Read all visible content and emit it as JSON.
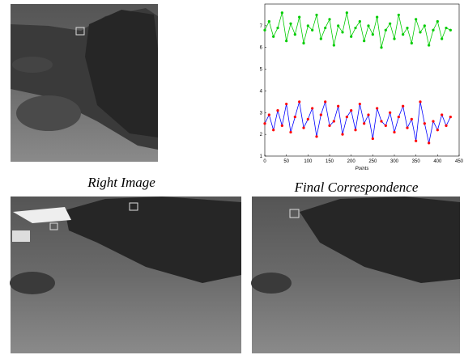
{
  "figure": {
    "caption_top_left": "Right Image",
    "caption_top_right": "Final Correspondence"
  },
  "chart_data": {
    "type": "line",
    "xlabel": "Points",
    "x": [
      0,
      10,
      20,
      30,
      40,
      50,
      60,
      70,
      80,
      90,
      100,
      110,
      120,
      130,
      140,
      150,
      160,
      170,
      180,
      190,
      200,
      210,
      220,
      230,
      240,
      250,
      260,
      270,
      280,
      290,
      300,
      310,
      320,
      330,
      340,
      350,
      360,
      370,
      380,
      390,
      400,
      410,
      420,
      430
    ],
    "series": [
      {
        "color": "#00cc00",
        "marker_color": "#00cc00",
        "values": [
          6.8,
          7.2,
          6.5,
          6.9,
          7.6,
          6.3,
          7.1,
          6.6,
          7.4,
          6.2,
          7.0,
          6.8,
          7.5,
          6.4,
          6.9,
          7.3,
          6.1,
          7.0,
          6.7,
          7.6,
          6.5,
          6.9,
          7.2,
          6.3,
          7.0,
          6.6,
          7.4,
          6.0,
          6.8,
          7.1,
          6.4,
          7.5,
          6.6,
          6.9,
          6.2,
          7.3,
          6.7,
          7.0,
          6.1,
          6.8,
          7.2,
          6.4,
          6.9,
          6.8
        ]
      },
      {
        "color": "#0000ff",
        "marker_color": "#ff0000",
        "values": [
          2.5,
          2.9,
          2.2,
          3.1,
          2.4,
          3.4,
          2.1,
          2.8,
          3.5,
          2.3,
          2.7,
          3.2,
          1.9,
          2.9,
          3.5,
          2.4,
          2.6,
          3.3,
          2.0,
          2.8,
          3.1,
          2.2,
          3.4,
          2.5,
          2.9,
          1.8,
          3.2,
          2.6,
          2.4,
          3.0,
          2.1,
          2.8,
          3.3,
          2.3,
          2.7,
          1.7,
          3.5,
          2.5,
          1.6,
          2.6,
          2.2,
          2.9,
          2.4,
          2.8
        ]
      }
    ],
    "xlim": [
      0,
      450
    ],
    "xticks": [
      0,
      50,
      100,
      150,
      200,
      250,
      300,
      350,
      400,
      450
    ],
    "ylim": [
      1,
      8
    ],
    "yticks": [
      1,
      2,
      3,
      4,
      5,
      6,
      7
    ]
  }
}
